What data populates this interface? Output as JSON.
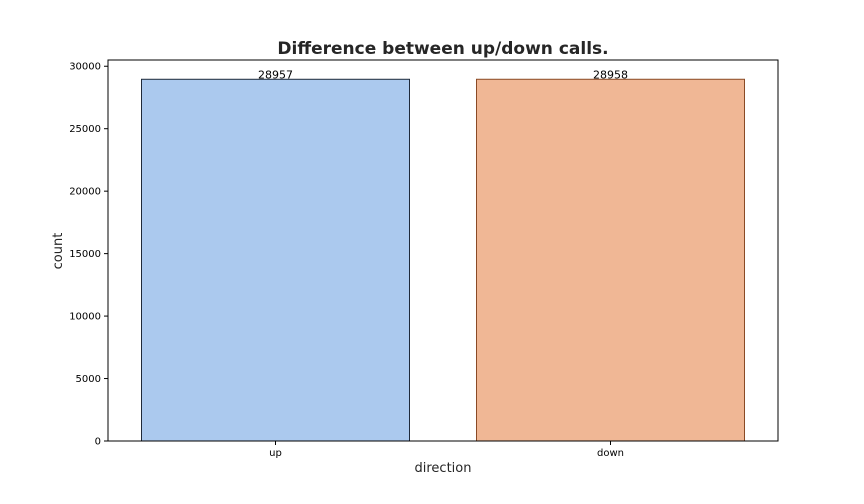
{
  "chart_data": {
    "type": "bar",
    "title": "Difference between up/down calls.",
    "xlabel": "direction",
    "ylabel": "count",
    "categories": [
      "up",
      "down"
    ],
    "values": [
      28957,
      28958
    ],
    "data_labels": [
      "28957",
      "28958"
    ],
    "ylim": [
      0,
      30500
    ],
    "yticks": [
      0,
      5000,
      10000,
      15000,
      20000,
      25000,
      30000
    ],
    "ytick_labels": [
      "0",
      "5000",
      "10000",
      "15000",
      "20000",
      "25000",
      "30000"
    ],
    "bar_colors": [
      "#abc9ee",
      "#f0b795"
    ],
    "bar_edge_colors": [
      "#1f2a3a",
      "#8a4a25"
    ],
    "grid": false,
    "legend": "none"
  }
}
